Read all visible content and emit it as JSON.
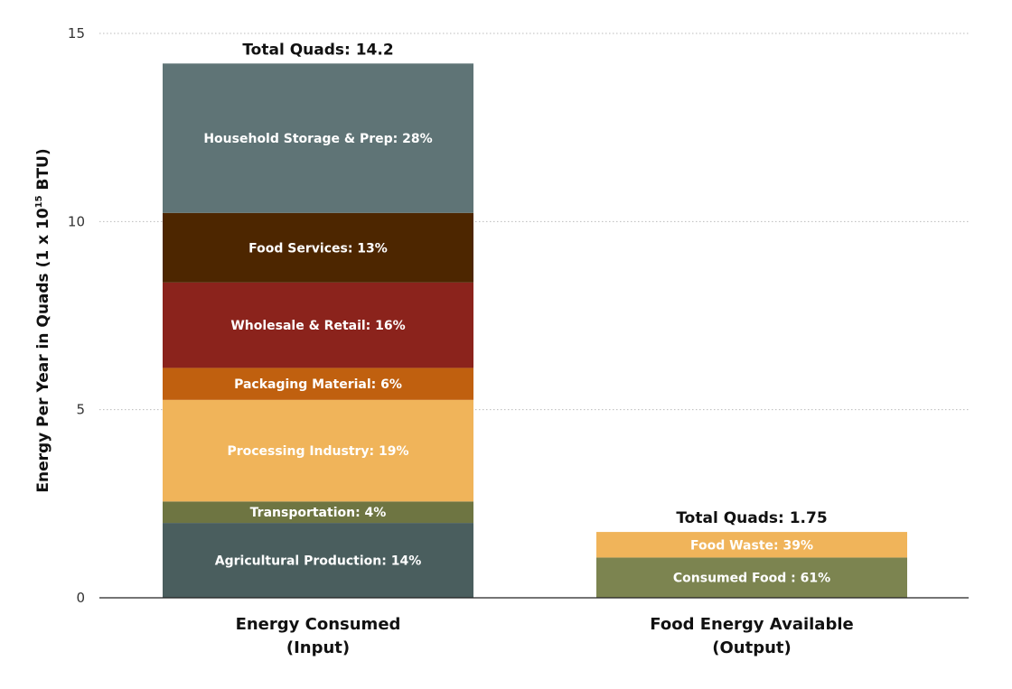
{
  "chart_data": {
    "type": "bar",
    "stacked": true,
    "ylabel_parts": [
      "Energy Per Year in Quads (1 x 10",
      "15",
      " BTU)"
    ],
    "ylim": [
      0,
      15
    ],
    "yticks": [
      0,
      5,
      10,
      15
    ],
    "grid": true,
    "bars": [
      {
        "category_lines": [
          "Energy Consumed",
          "(Input)"
        ],
        "total_label": "Total Quads: 14.2",
        "total": 14.2,
        "segments": [
          {
            "name": "Agricultural Production",
            "label": "Agricultural Production: 14%",
            "value": 1.99,
            "color": "#4a5e5e"
          },
          {
            "name": "Transportation",
            "label": "Transportation: 4%",
            "value": 0.57,
            "color": "#6e7542"
          },
          {
            "name": "Processing Industry",
            "label": "Processing Industry: 19%",
            "value": 2.7,
            "color": "#f0b45a"
          },
          {
            "name": "Packaging Material",
            "label": "Packaging Material: 6%",
            "value": 0.85,
            "color": "#c0600f"
          },
          {
            "name": "Wholesale & Retail",
            "label": "Wholesale & Retail: 16%",
            "value": 2.27,
            "color": "#8b231c"
          },
          {
            "name": "Food Services",
            "label": "Food Services: 13%",
            "value": 1.85,
            "color": "#4d2600"
          },
          {
            "name": "Household Storage & Prep",
            "label": "Household Storage & Prep: 28%",
            "value": 3.97,
            "color": "#5f7476"
          }
        ]
      },
      {
        "category_lines": [
          "Food Energy Available",
          "(Output)"
        ],
        "total_label": "Total Quads: 1.75",
        "total": 1.75,
        "segments": [
          {
            "name": "Consumed Food",
            "label": "Consumed Food : 61%",
            "value": 1.07,
            "color": "#7c8450"
          },
          {
            "name": "Food Waste",
            "label": "Food Waste: 39%",
            "value": 0.68,
            "color": "#f0b45a"
          }
        ]
      }
    ]
  }
}
